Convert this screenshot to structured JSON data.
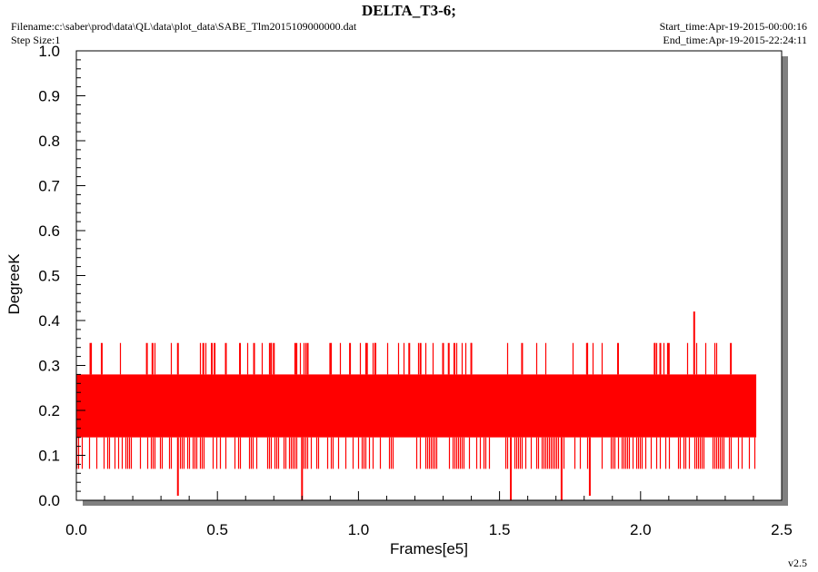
{
  "header": {
    "title": "DELTA_T3-6;",
    "filename": "Filename:c:\\saber\\prod\\data\\QL\\data\\plot_data\\SABE_Tlm2015109000000.dat",
    "step_size": "Step Size:1",
    "start_time": "Start_time:Apr-19-2015-00:00:16",
    "end_time": "End_time:Apr-19-2015-22:24:11"
  },
  "footer": {
    "version": "v2.5"
  },
  "colors": {
    "series": "#ff0000",
    "frame": "#000000",
    "shadow": "#808080",
    "background": "#ffffff"
  },
  "chart_data": {
    "type": "line",
    "title": "DELTA_T3-6;",
    "xlabel": "Frames[e5]",
    "ylabel": "DegreeK",
    "xlim": [
      0.0,
      2.5
    ],
    "ylim": [
      0.0,
      1.0
    ],
    "x_ticks": [
      "0.0",
      "0.5",
      "1.0",
      "1.5",
      "2.0",
      "2.5"
    ],
    "y_ticks": [
      "0.0",
      "0.1",
      "0.2",
      "0.3",
      "0.4",
      "0.5",
      "0.6",
      "0.7",
      "0.8",
      "0.9",
      "1.0"
    ],
    "grid": false,
    "legend": "none",
    "series": [
      {
        "color": "#ff0000",
        "x_range": [
          0.0,
          2.41
        ],
        "dense_band": [
          0.14,
          0.28
        ],
        "common_low": 0.07,
        "common_high": 0.35,
        "high_spikes": [
          {
            "x": 0.05,
            "y": 0.35
          },
          {
            "x": 0.09,
            "y": 0.35
          },
          {
            "x": 0.25,
            "y": 0.35
          },
          {
            "x": 0.27,
            "y": 0.35
          },
          {
            "x": 0.36,
            "y": 0.35
          },
          {
            "x": 0.45,
            "y": 0.35
          },
          {
            "x": 0.48,
            "y": 0.35
          },
          {
            "x": 0.49,
            "y": 0.35
          },
          {
            "x": 0.53,
            "y": 0.35
          },
          {
            "x": 0.58,
            "y": 0.35
          },
          {
            "x": 0.63,
            "y": 0.35
          },
          {
            "x": 0.69,
            "y": 0.35
          },
          {
            "x": 0.7,
            "y": 0.35
          },
          {
            "x": 0.78,
            "y": 0.35
          },
          {
            "x": 0.82,
            "y": 0.35
          },
          {
            "x": 0.9,
            "y": 0.35
          },
          {
            "x": 0.97,
            "y": 0.35
          },
          {
            "x": 1.03,
            "y": 0.35
          },
          {
            "x": 1.06,
            "y": 0.35
          },
          {
            "x": 1.18,
            "y": 0.35
          },
          {
            "x": 1.22,
            "y": 0.35
          },
          {
            "x": 1.3,
            "y": 0.35
          },
          {
            "x": 1.32,
            "y": 0.35
          },
          {
            "x": 1.34,
            "y": 0.35
          },
          {
            "x": 1.4,
            "y": 0.35
          },
          {
            "x": 1.58,
            "y": 0.35
          },
          {
            "x": 1.81,
            "y": 0.35
          },
          {
            "x": 1.92,
            "y": 0.35
          },
          {
            "x": 2.05,
            "y": 0.35
          },
          {
            "x": 2.07,
            "y": 0.35
          },
          {
            "x": 2.1,
            "y": 0.35
          },
          {
            "x": 2.19,
            "y": 0.42
          },
          {
            "x": 2.32,
            "y": 0.35
          }
        ],
        "low_spikes": [
          {
            "x": 0.36,
            "y": 0.01
          },
          {
            "x": 0.8,
            "y": 0.0
          },
          {
            "x": 1.54,
            "y": 0.0
          },
          {
            "x": 1.72,
            "y": 0.0
          },
          {
            "x": 1.82,
            "y": 0.01
          }
        ]
      }
    ]
  }
}
